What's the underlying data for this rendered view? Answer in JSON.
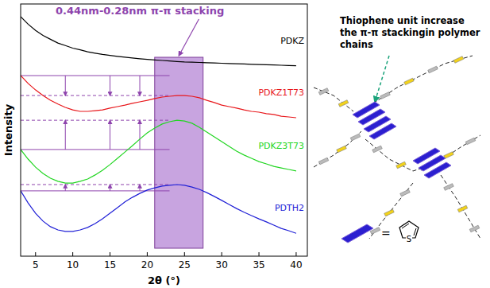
{
  "chart_data": {
    "type": "line",
    "x_label": "2θ (°)",
    "y_label": "Intensity",
    "x": [
      3,
      4,
      5,
      6,
      7,
      8,
      9,
      10,
      11,
      12,
      13,
      14,
      15,
      16,
      17,
      18,
      19,
      20,
      21,
      22,
      23,
      24,
      25,
      26,
      27,
      28,
      29,
      30,
      31,
      32,
      33,
      34,
      35,
      36,
      37,
      38,
      39,
      40
    ],
    "series": [
      {
        "name": "PDKZ",
        "color": "#000000",
        "values": [
          95,
          92,
          89.5,
          87.5,
          86,
          84.5,
          83.5,
          82.5,
          81.8,
          81,
          80.5,
          80,
          79.6,
          79.2,
          78.9,
          78.6,
          78.3,
          78,
          77.8,
          77.6,
          77.4,
          77.2,
          77,
          76.9,
          76.8,
          76.7,
          76.6,
          76.5,
          76.4,
          76.3,
          76.2,
          76.1,
          76,
          75.9,
          75.8,
          75.7,
          75.6,
          75.5
        ]
      },
      {
        "name": "PDKZ1T73",
        "color": "#e8171b",
        "values": [
          71.6,
          68.5,
          65.9,
          63.7,
          61.8,
          60.3,
          59,
          58,
          57.4,
          57.4,
          57.7,
          58,
          58.7,
          59.3,
          59.9,
          60.6,
          61.2,
          61.8,
          62.5,
          63.1,
          63.4,
          63.7,
          63.7,
          63.4,
          62.8,
          61.8,
          60.9,
          59.9,
          59.3,
          58.7,
          58,
          57.4,
          57.1,
          56.5,
          56.2,
          55.5,
          55.2,
          54.9
        ]
      },
      {
        "name": "PDKZ3T73",
        "color": "#22d622",
        "values": [
          42.3,
          38.5,
          35.3,
          32.8,
          30.9,
          29.7,
          29,
          29,
          29.7,
          30.6,
          32.2,
          34.1,
          36.3,
          38.8,
          41.3,
          43.8,
          46.4,
          48.9,
          50.8,
          52.4,
          53.3,
          53.9,
          53.6,
          52.7,
          51.1,
          49.2,
          47.3,
          45.4,
          43.5,
          41.6,
          40.1,
          38.8,
          37.5,
          36.6,
          35.6,
          35,
          34.4,
          33.8
        ]
      },
      {
        "name": "PDTH2",
        "color": "#1f1fd6",
        "values": [
          25.9,
          21.1,
          17,
          13.9,
          11.7,
          10.4,
          9.8,
          9.8,
          10.4,
          11.4,
          12.9,
          14.8,
          17,
          19.2,
          21.5,
          23.3,
          24.9,
          26.2,
          27.1,
          27.8,
          28.1,
          28.4,
          28.1,
          27.4,
          26.5,
          25.2,
          23.7,
          22.1,
          20.5,
          18.9,
          17.4,
          16.1,
          14.8,
          13.6,
          12.3,
          11,
          10.1,
          9.1
        ]
      }
    ],
    "xlim": [
      3,
      41.5
    ],
    "xticks": [
      5,
      10,
      15,
      20,
      25,
      30,
      35,
      40
    ],
    "ylim": [
      0,
      100
    ],
    "tick_labels": "x",
    "shaded_range": [
      21,
      27.5
    ],
    "annotations": [
      "0.44nm-0.28nm π-π stacking",
      "Thiophene unit increase the π-π stackingin polymer chains"
    ]
  },
  "schematic": {
    "legend_symbol": "=",
    "atom": "S"
  }
}
